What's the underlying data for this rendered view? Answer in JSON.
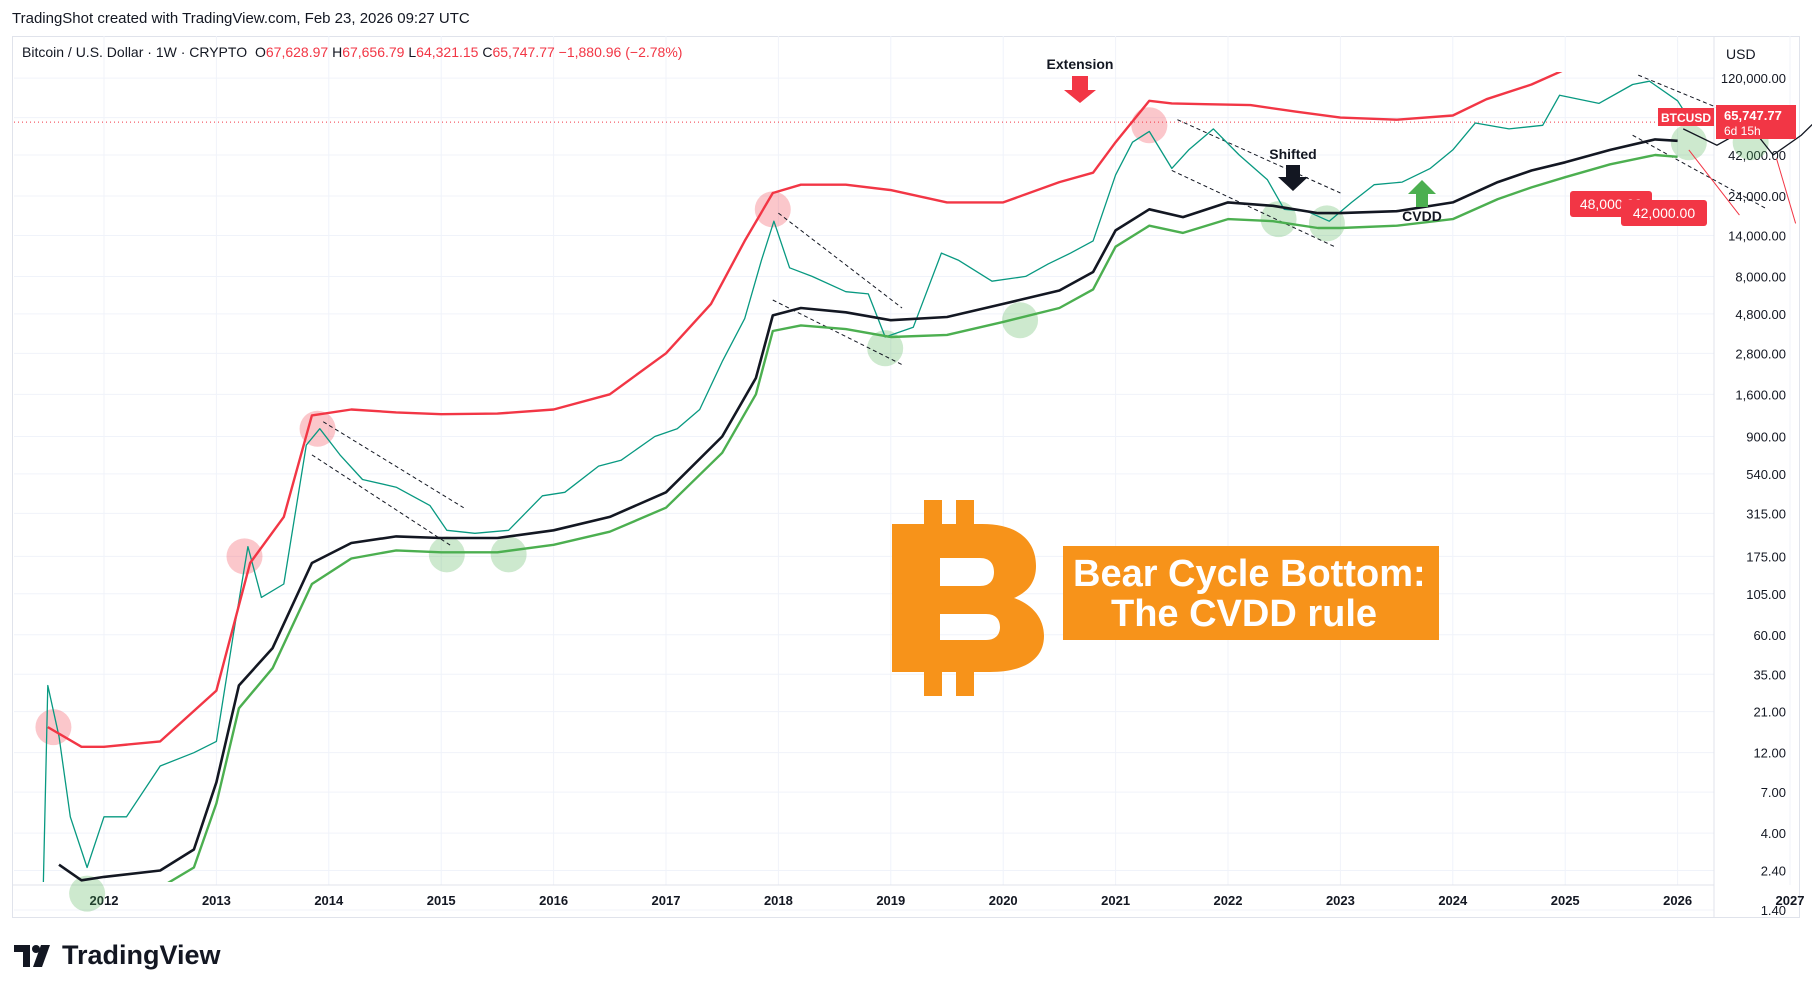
{
  "header": {
    "watermark": "TradingShot created with TradingView.com, Feb 23, 2026 09:27 UTC"
  },
  "legend": {
    "symbol": "Bitcoin / U.S. Dollar · 1W · CRYPTO",
    "open_label": "O",
    "open": "67,628.97",
    "high_label": "H",
    "high": "67,656.79",
    "low_label": "L",
    "low": "64,321.15",
    "close_label": "C",
    "close": "65,747.77",
    "change": "−1,880.96 (−2.78%)"
  },
  "price_axis": {
    "currency": "USD",
    "ticks": [
      "120,000.00",
      "70,000.00",
      "42,000.00",
      "24,000.00",
      "14,000.00",
      "8,000.00",
      "4,800.00",
      "2,800.00",
      "1,600.00",
      "900.00",
      "540.00",
      "315.00",
      "175.00",
      "105.00",
      "60.00",
      "35.00",
      "21.00",
      "12.00",
      "7.00",
      "4.00",
      "2.40",
      "1.40"
    ],
    "last_price_tag": {
      "symbol": "BTCUSD",
      "price": "65,747.77",
      "countdown": "6d 15h"
    }
  },
  "time_axis": {
    "ticks": [
      "2012",
      "2013",
      "2014",
      "2015",
      "2016",
      "2017",
      "2018",
      "2019",
      "2020",
      "2021",
      "2022",
      "2023",
      "2024",
      "2025",
      "2026",
      "2027"
    ]
  },
  "annotations": {
    "extension": "Extension",
    "shifted": "Shifted",
    "cvdd": "CVDD",
    "target_1": "48,000.00",
    "target_2": "42,000.00"
  },
  "title_box": {
    "line1": "Bear Cycle Bottom:",
    "line2": "The CVDD rule"
  },
  "footer": {
    "brand": "TradingView"
  },
  "colors": {
    "upper_band": "#f23645",
    "cvdd_line": "#131722",
    "lower_band": "#4caf50",
    "candle_up": "#089981",
    "candle_down": "#f23645",
    "accent": "#f7931a"
  },
  "chart_data": {
    "type": "line",
    "scale": "log",
    "x_range": [
      2011.45,
      2027.2
    ],
    "ylim": [
      0.9,
      150000
    ],
    "series": [],
    "lines": {
      "upper": {
        "x": [
          2011.5,
          2011.8,
          2012.0,
          2012.5,
          2013.0,
          2013.3,
          2013.6,
          2013.85,
          2014.2,
          2014.6,
          2015.0,
          2015.5,
          2016.0,
          2016.5,
          2017.0,
          2017.4,
          2017.7,
          2017.95,
          2018.2,
          2018.6,
          2019.0,
          2019.5,
          2020.0,
          2020.5,
          2020.8,
          2021.0,
          2021.3,
          2021.5,
          2021.8,
          2022.2,
          2022.6,
          2023.0,
          2023.5,
          2024.0,
          2024.3,
          2024.7,
          2025.0,
          2025.4,
          2025.7,
          2026.0
        ],
        "y": [
          17,
          13,
          13,
          14,
          28,
          160,
          300,
          1200,
          1300,
          1250,
          1220,
          1230,
          1300,
          1600,
          2800,
          5500,
          13000,
          25000,
          28000,
          28000,
          26000,
          22000,
          22000,
          29000,
          33000,
          50000,
          88000,
          85000,
          84000,
          83000,
          76000,
          70000,
          68000,
          72000,
          90000,
          110000,
          135000,
          155000,
          160000,
          155000
        ]
      },
      "cvdd": {
        "x": [
          2011.6,
          2011.8,
          2012.0,
          2012.5,
          2012.8,
          2013.0,
          2013.2,
          2013.5,
          2013.85,
          2014.2,
          2014.6,
          2015.0,
          2015.5,
          2016.0,
          2016.5,
          2017.0,
          2017.5,
          2017.8,
          2017.95,
          2018.2,
          2018.6,
          2019.0,
          2019.5,
          2020.0,
          2020.5,
          2020.8,
          2021.0,
          2021.3,
          2021.6,
          2022.0,
          2022.4,
          2022.8,
          2023.0,
          2023.5,
          2024.0,
          2024.4,
          2024.7,
          2025.0,
          2025.4,
          2025.8,
          2026.0
        ],
        "y": [
          2.6,
          2.1,
          2.2,
          2.4,
          3.2,
          8,
          30,
          50,
          160,
          210,
          230,
          225,
          225,
          250,
          300,
          420,
          900,
          2000,
          4700,
          5200,
          4900,
          4400,
          4600,
          5500,
          6600,
          8500,
          15000,
          20000,
          18000,
          22000,
          21000,
          19000,
          19000,
          19500,
          22000,
          29000,
          34000,
          38000,
          45000,
          52000,
          51000
        ]
      },
      "lower": {
        "x": [
          2011.6,
          2011.8,
          2012.0,
          2012.5,
          2012.8,
          2013.0,
          2013.2,
          2013.5,
          2013.85,
          2014.2,
          2014.6,
          2015.0,
          2015.5,
          2016.0,
          2016.5,
          2017.0,
          2017.5,
          2017.8,
          2017.95,
          2018.2,
          2018.6,
          2019.0,
          2019.5,
          2020.0,
          2020.5,
          2020.8,
          2021.0,
          2021.3,
          2021.6,
          2022.0,
          2022.4,
          2022.8,
          2023.0,
          2023.5,
          2024.0,
          2024.4,
          2024.7,
          2025.0,
          2025.4,
          2025.8,
          2026.0
        ],
        "y": [
          2.0,
          1.7,
          1.8,
          1.9,
          2.5,
          6,
          22,
          38,
          120,
          170,
          190,
          185,
          185,
          205,
          245,
          340,
          720,
          1600,
          3800,
          4100,
          3900,
          3500,
          3600,
          4300,
          5200,
          6700,
          12000,
          16000,
          14500,
          17500,
          17000,
          15500,
          15500,
          16000,
          17500,
          23000,
          27000,
          31000,
          37000,
          42000,
          41000
        ]
      },
      "price": {
        "x": [
          2011.45,
          2011.5,
          2011.6,
          2011.7,
          2011.85,
          2012.0,
          2012.2,
          2012.5,
          2012.8,
          2013.0,
          2013.15,
          2013.28,
          2013.4,
          2013.6,
          2013.8,
          2013.92,
          2014.1,
          2014.3,
          2014.6,
          2014.9,
          2015.05,
          2015.3,
          2015.6,
          2015.9,
          2016.1,
          2016.4,
          2016.6,
          2016.9,
          2017.1,
          2017.3,
          2017.5,
          2017.7,
          2017.85,
          2017.96,
          2018.1,
          2018.3,
          2018.6,
          2018.8,
          2018.95,
          2019.2,
          2019.45,
          2019.6,
          2019.9,
          2020.2,
          2020.4,
          2020.6,
          2020.8,
          2021.0,
          2021.15,
          2021.3,
          2021.5,
          2021.65,
          2021.87,
          2022.1,
          2022.35,
          2022.5,
          2022.7,
          2022.9,
          2023.1,
          2023.3,
          2023.55,
          2023.8,
          2024.0,
          2024.2,
          2024.5,
          2024.8,
          2024.95,
          2025.3,
          2025.6,
          2025.75,
          2026.0,
          2026.12
        ],
        "y": [
          1,
          30,
          15,
          5,
          2.5,
          5,
          5,
          10,
          12,
          14,
          60,
          200,
          100,
          120,
          800,
          1000,
          700,
          500,
          450,
          350,
          250,
          240,
          250,
          400,
          420,
          600,
          650,
          900,
          1000,
          1300,
          2500,
          4500,
          10000,
          17000,
          9000,
          8000,
          6500,
          6300,
          3500,
          4000,
          11000,
          10000,
          7500,
          8000,
          9500,
          11000,
          13000,
          32000,
          50000,
          58000,
          35000,
          45000,
          60000,
          42000,
          30000,
          20000,
          19500,
          17000,
          22000,
          28000,
          29000,
          35000,
          45000,
          65000,
          60000,
          63000,
          95000,
          85000,
          110000,
          115000,
          88000,
          65747
        ]
      }
    }
  }
}
